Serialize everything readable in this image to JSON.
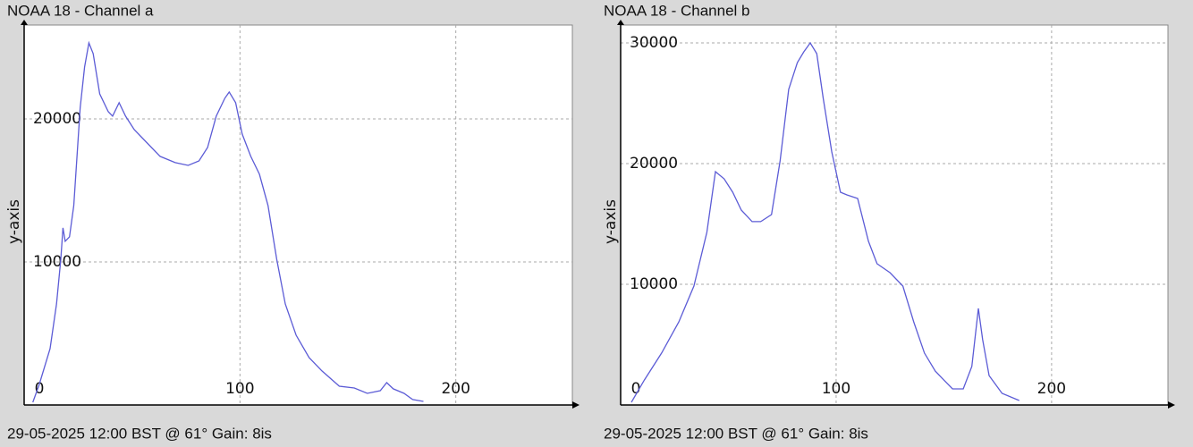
{
  "chart_data": [
    {
      "type": "line",
      "title": "NOAA 18 - Channel a",
      "y_label": "y-axis",
      "footer": "29-05-2025 12:00 BST @ 61° Gain: 8is",
      "x": [
        4,
        7,
        12,
        15,
        17,
        18,
        19,
        21,
        23,
        26,
        28,
        30,
        32,
        35,
        39,
        41,
        44,
        47,
        51,
        57,
        63,
        70,
        76,
        81,
        85,
        89,
        93,
        95,
        98,
        101,
        105,
        109,
        113,
        117,
        121,
        126,
        132,
        138,
        146,
        153,
        159,
        165,
        168,
        171,
        176,
        180,
        185
      ],
      "series": [
        {
          "color": "#5c5cd6",
          "values": [
            190,
            1440,
            3940,
            7060,
            10190,
            12380,
            11440,
            11750,
            13940,
            20810,
            23630,
            25310,
            24560,
            21750,
            20500,
            20190,
            21130,
            20190,
            19250,
            18310,
            17380,
            16940,
            16750,
            17060,
            18000,
            20190,
            21440,
            21880,
            21130,
            18940,
            17380,
            16130,
            13940,
            10190,
            7060,
            4880,
            3310,
            2380,
            1310,
            1190,
            810,
            1000,
            1560,
            1130,
            810,
            380,
            250
          ]
        }
      ],
      "xlim": [
        0,
        254
      ],
      "xticks": [
        0,
        100,
        200
      ],
      "ylim": [
        0,
        26560
      ],
      "yticks": [
        10000,
        20000
      ],
      "grid": true
    },
    {
      "type": "line",
      "title": "NOAA 18 - Channel b",
      "y_label": "y-axis",
      "footer": "29-05-2025 12:00 BST @ 61° Gain: 8is",
      "x": [
        5,
        11,
        19,
        27,
        34,
        40,
        44,
        48,
        52,
        56,
        61,
        65,
        70,
        74,
        78,
        82,
        85,
        88,
        91,
        94,
        98,
        102,
        105,
        110,
        115,
        119,
        125,
        131,
        136,
        141,
        146,
        150,
        154,
        159,
        163,
        166,
        168,
        171,
        177,
        185
      ],
      "series": [
        {
          "color": "#5c5cd6",
          "values": [
            220,
            2070,
            4300,
            6890,
            9850,
            14300,
            19330,
            18740,
            17630,
            16150,
            15190,
            15190,
            15780,
            20220,
            26150,
            28370,
            29260,
            30000,
            29110,
            25410,
            20960,
            17630,
            17410,
            17110,
            13560,
            11700,
            10960,
            9850,
            6890,
            4300,
            2810,
            2070,
            1330,
            1330,
            3190,
            8000,
            5410,
            2440,
            960,
            370
          ]
        }
      ],
      "xlim": [
        0,
        254
      ],
      "xticks": [
        0,
        100,
        200
      ],
      "ylim": [
        0,
        31480
      ],
      "yticks": [
        10000,
        20000,
        30000
      ],
      "grid": true
    }
  ]
}
